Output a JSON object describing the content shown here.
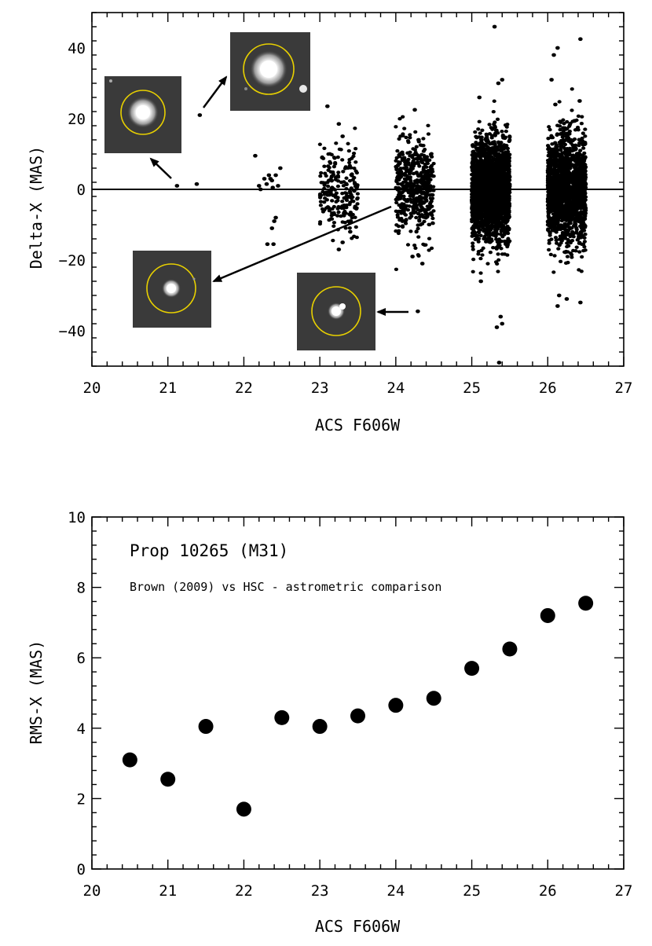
{
  "chart_data": [
    {
      "type": "scatter",
      "title": "",
      "xlabel": "ACS F606W",
      "ylabel": "Delta-X (MAS)",
      "xlim": [
        20,
        27
      ],
      "ylim": [
        -50,
        50
      ],
      "xticks": [
        "20",
        "21",
        "22",
        "23",
        "24",
        "25",
        "26",
        "27"
      ],
      "yticks": [
        "−40",
        "−20",
        "0",
        "20",
        "40"
      ],
      "ytick_values": [
        -40,
        -20,
        0,
        20,
        40
      ],
      "zero_line": 0,
      "clusters": [
        {
          "mag": 23.0,
          "count": 220,
          "spread": 6,
          "xmin": 23.0,
          "xmax": 23.5
        },
        {
          "mag": 24.0,
          "count": 500,
          "spread": 6.5,
          "xmin": 24.0,
          "xmax": 24.5
        },
        {
          "mag": 25.0,
          "count": 2200,
          "spread": 7,
          "xmin": 25.0,
          "xmax": 25.5
        },
        {
          "mag": 26.0,
          "count": 1700,
          "spread": 7.5,
          "xmin": 26.0,
          "xmax": 26.5
        }
      ],
      "points": [
        {
          "x": 21.12,
          "y": 1
        },
        {
          "x": 21.38,
          "y": 1.5
        },
        {
          "x": 21.42,
          "y": 21
        },
        {
          "x": 22.15,
          "y": 9.5
        },
        {
          "x": 22.2,
          "y": 1
        },
        {
          "x": 22.22,
          "y": 0
        },
        {
          "x": 22.27,
          "y": 3
        },
        {
          "x": 22.3,
          "y": 1.5
        },
        {
          "x": 22.33,
          "y": 4
        },
        {
          "x": 22.37,
          "y": 2.5
        },
        {
          "x": 22.38,
          "y": 0.5
        },
        {
          "x": 22.42,
          "y": 4
        },
        {
          "x": 22.45,
          "y": 1
        },
        {
          "x": 22.48,
          "y": 6
        },
        {
          "x": 22.35,
          "y": 3
        },
        {
          "x": 22.4,
          "y": -9
        },
        {
          "x": 22.42,
          "y": -8
        },
        {
          "x": 22.37,
          "y": -11
        },
        {
          "x": 22.31,
          "y": -15.5
        },
        {
          "x": 22.39,
          "y": -15.5
        },
        {
          "x": 23.1,
          "y": 23.5
        },
        {
          "x": 23.25,
          "y": 18.5
        },
        {
          "x": 23.3,
          "y": 15
        },
        {
          "x": 23.3,
          "y": -15
        },
        {
          "x": 23.25,
          "y": -17
        },
        {
          "x": 23.4,
          "y": -12
        },
        {
          "x": 24.25,
          "y": 22.5
        },
        {
          "x": 24.3,
          "y": 14
        },
        {
          "x": 24.29,
          "y": -34.5
        },
        {
          "x": 24.22,
          "y": -19
        },
        {
          "x": 24.35,
          "y": -21
        },
        {
          "x": 25.3,
          "y": 46
        },
        {
          "x": 25.35,
          "y": 30
        },
        {
          "x": 25.4,
          "y": 31
        },
        {
          "x": 25.33,
          "y": -39
        },
        {
          "x": 25.38,
          "y": -36
        },
        {
          "x": 25.4,
          "y": -38
        },
        {
          "x": 25.36,
          "y": -49
        },
        {
          "x": 25.1,
          "y": 26
        },
        {
          "x": 25.12,
          "y": -26
        },
        {
          "x": 26.08,
          "y": 38
        },
        {
          "x": 26.13,
          "y": 40
        },
        {
          "x": 26.43,
          "y": 42.5
        },
        {
          "x": 26.05,
          "y": 31
        },
        {
          "x": 26.42,
          "y": 25
        },
        {
          "x": 26.15,
          "y": -30
        },
        {
          "x": 26.13,
          "y": -33
        },
        {
          "x": 26.43,
          "y": -32
        },
        {
          "x": 26.25,
          "y": -31
        },
        {
          "x": 26.1,
          "y": 24
        }
      ],
      "insets": [
        {
          "name": "inset-bright-star-a",
          "label": "",
          "anchor": "upper-left",
          "arrow_target": "mag 21"
        },
        {
          "name": "inset-bright-star-b",
          "label": "",
          "anchor": "top-center",
          "arrow_target": "mag 21.4"
        },
        {
          "name": "inset-faint-star",
          "label": "",
          "anchor": "lower-left",
          "arrow_target": "mag 24 cluster"
        },
        {
          "name": "inset-double-star",
          "label": "",
          "anchor": "lower-center",
          "arrow_target": "mag 24.3 outlier"
        }
      ]
    },
    {
      "type": "scatter",
      "title": "Prop 10265 (M31)",
      "subtitle": "Brown (2009) vs HSC -  astrometric comparison",
      "xlabel": "ACS F606W",
      "ylabel": "RMS-X (MAS)",
      "xlim": [
        20,
        27
      ],
      "ylim": [
        0,
        10
      ],
      "xticks": [
        "20",
        "21",
        "22",
        "23",
        "24",
        "25",
        "26",
        "27"
      ],
      "yticks": [
        "0",
        "2",
        "4",
        "6",
        "8",
        "10"
      ],
      "ytick_values": [
        0,
        2,
        4,
        6,
        8,
        10
      ],
      "x": [
        20.5,
        21.0,
        21.5,
        22.0,
        22.5,
        23.0,
        23.5,
        24.0,
        24.5,
        25.0,
        25.5,
        26.0,
        26.5
      ],
      "y": [
        3.1,
        2.55,
        4.05,
        1.7,
        4.3,
        4.05,
        4.35,
        4.65,
        4.85,
        5.7,
        6.25,
        7.2,
        7.55
      ]
    }
  ],
  "colors": {
    "marker": "#000000",
    "inset_bg": "#3a3a3a",
    "circle": "#e8d000",
    "star": "#ffffff"
  }
}
